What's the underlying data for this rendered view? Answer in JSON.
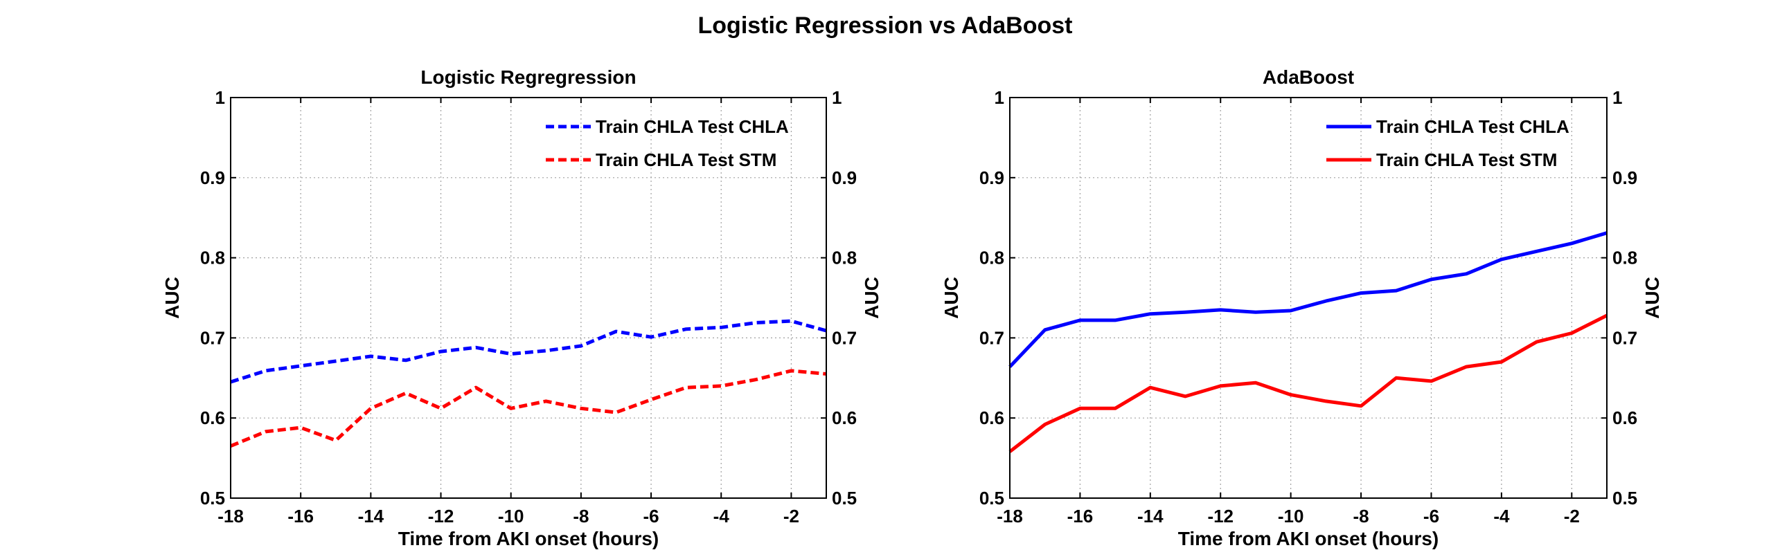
{
  "figure": {
    "title": "Logistic Regression vs AdaBoost"
  },
  "chart_data": [
    {
      "type": "line",
      "title": "Logistic Regregression",
      "xlabel": "Time from AKI onset (hours)",
      "ylabel": "AUC",
      "ylabel_right": "AUC",
      "xlim": [
        -18,
        -1
      ],
      "ylim": [
        0.5,
        1
      ],
      "xticks": [
        -18,
        -16,
        -14,
        -12,
        -10,
        -8,
        -6,
        -4,
        -2
      ],
      "xtick_labels": [
        "-18",
        "-16",
        "-14",
        "-12",
        "-10",
        "-8",
        "-6",
        "-4",
        "-2"
      ],
      "yticks": [
        0.5,
        0.6,
        0.7,
        0.8,
        0.9,
        1
      ],
      "ytick_labels": [
        "0.5",
        "0.6",
        "0.7",
        "0.8",
        "0.9",
        "1"
      ],
      "grid": true,
      "legend_position": "top-right",
      "line_style": "dashed",
      "x": [
        -18,
        -17,
        -16,
        -15,
        -14,
        -13,
        -12,
        -11,
        -10,
        -9,
        -8,
        -7,
        -6,
        -5,
        -4,
        -3,
        -2,
        -1
      ],
      "series": [
        {
          "name": "Train CHLA Test CHLA",
          "color": "#0000ff",
          "values": [
            0.645,
            0.659,
            0.665,
            0.671,
            0.677,
            0.672,
            0.683,
            0.688,
            0.68,
            0.684,
            0.69,
            0.708,
            0.701,
            0.711,
            0.713,
            0.719,
            0.721,
            0.709
          ]
        },
        {
          "name": "Train CHLA Test STM",
          "color": "#ff0000",
          "values": [
            0.565,
            0.583,
            0.588,
            0.572,
            0.612,
            0.631,
            0.612,
            0.638,
            0.612,
            0.621,
            0.612,
            0.607,
            0.623,
            0.638,
            0.64,
            0.648,
            0.659,
            0.655
          ]
        }
      ]
    },
    {
      "type": "line",
      "title": "AdaBoost",
      "xlabel": "Time from AKI onset (hours)",
      "ylabel": "AUC",
      "ylabel_right": "AUC",
      "xlim": [
        -18,
        -1
      ],
      "ylim": [
        0.5,
        1
      ],
      "xticks": [
        -18,
        -16,
        -14,
        -12,
        -10,
        -8,
        -6,
        -4,
        -2
      ],
      "xtick_labels": [
        "-18",
        "-16",
        "-14",
        "-12",
        "-10",
        "-8",
        "-6",
        "-4",
        "-2"
      ],
      "yticks": [
        0.5,
        0.6,
        0.7,
        0.8,
        0.9,
        1
      ],
      "ytick_labels": [
        "0.5",
        "0.6",
        "0.7",
        "0.8",
        "0.9",
        "1"
      ],
      "grid": true,
      "legend_position": "top-right",
      "line_style": "solid",
      "x": [
        -18,
        -17,
        -16,
        -15,
        -14,
        -13,
        -12,
        -11,
        -10,
        -9,
        -8,
        -7,
        -6,
        -5,
        -4,
        -3,
        -2,
        -1
      ],
      "series": [
        {
          "name": "Train CHLA Test CHLA",
          "color": "#0000ff",
          "values": [
            0.664,
            0.71,
            0.722,
            0.722,
            0.73,
            0.732,
            0.735,
            0.732,
            0.734,
            0.746,
            0.756,
            0.759,
            0.773,
            0.78,
            0.798,
            0.808,
            0.818,
            0.831
          ]
        },
        {
          "name": "Train CHLA Test STM",
          "color": "#ff0000",
          "values": [
            0.558,
            0.592,
            0.612,
            0.612,
            0.638,
            0.627,
            0.64,
            0.644,
            0.629,
            0.621,
            0.615,
            0.65,
            0.646,
            0.664,
            0.67,
            0.695,
            0.706,
            0.728
          ]
        }
      ]
    }
  ]
}
